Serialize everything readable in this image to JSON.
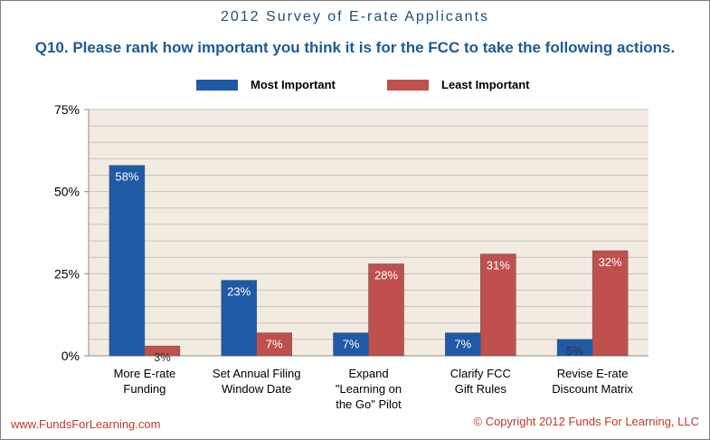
{
  "header": {
    "survey_title": "2012 Survey of E-rate Applicants",
    "question": "Q10. Please rank how important you think it is for the FCC to take the following actions."
  },
  "footer": {
    "website": "www.FundsForLearning.com",
    "copyright": "© Copyright 2012 Funds For Learning, LLC"
  },
  "colors": {
    "most": "#1f5aa6",
    "least": "#c0504d",
    "plot_bg": "#f1ebe1",
    "grid": "#c9c4bc"
  },
  "chart_data": {
    "type": "bar",
    "title": "Q10. Please rank how important you think it is for the FCC to take the following actions.",
    "categories": [
      [
        "More E-rate",
        "Funding"
      ],
      [
        "Set Annual Filing",
        "Window Date"
      ],
      [
        "Expand",
        "\"Learning on",
        "the Go\" Pilot"
      ],
      [
        "Clarify FCC",
        "Gift Rules"
      ],
      [
        "Revise E-rate",
        "Discount Matrix"
      ]
    ],
    "series": [
      {
        "name": "Most Important",
        "values": [
          58,
          23,
          7,
          7,
          5
        ],
        "labels": [
          "58%",
          "23%",
          "7%",
          "7%",
          "5%"
        ]
      },
      {
        "name": "Least Important",
        "values": [
          3,
          7,
          28,
          31,
          32
        ],
        "labels": [
          "3%",
          "7%",
          "28%",
          "31%",
          "32%"
        ]
      }
    ],
    "y_ticks": [
      "0%",
      "25%",
      "50%",
      "75%"
    ],
    "ylim": [
      0,
      75
    ],
    "grid": true,
    "legend": "top"
  }
}
